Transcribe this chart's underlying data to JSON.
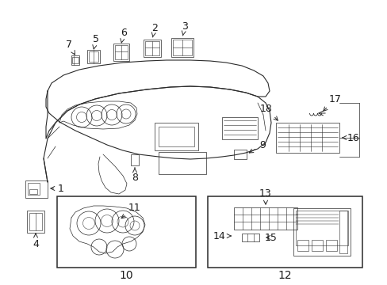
{
  "background_color": "#ffffff",
  "figsize": [
    4.89,
    3.6
  ],
  "dpi": 100,
  "line_color": "#2a2a2a",
  "text_color": "#1a1a1a",
  "font_size": 8,
  "label_font_size": 9,
  "lw_main": 0.8,
  "lw_thin": 0.5,
  "lw_thick": 1.1
}
